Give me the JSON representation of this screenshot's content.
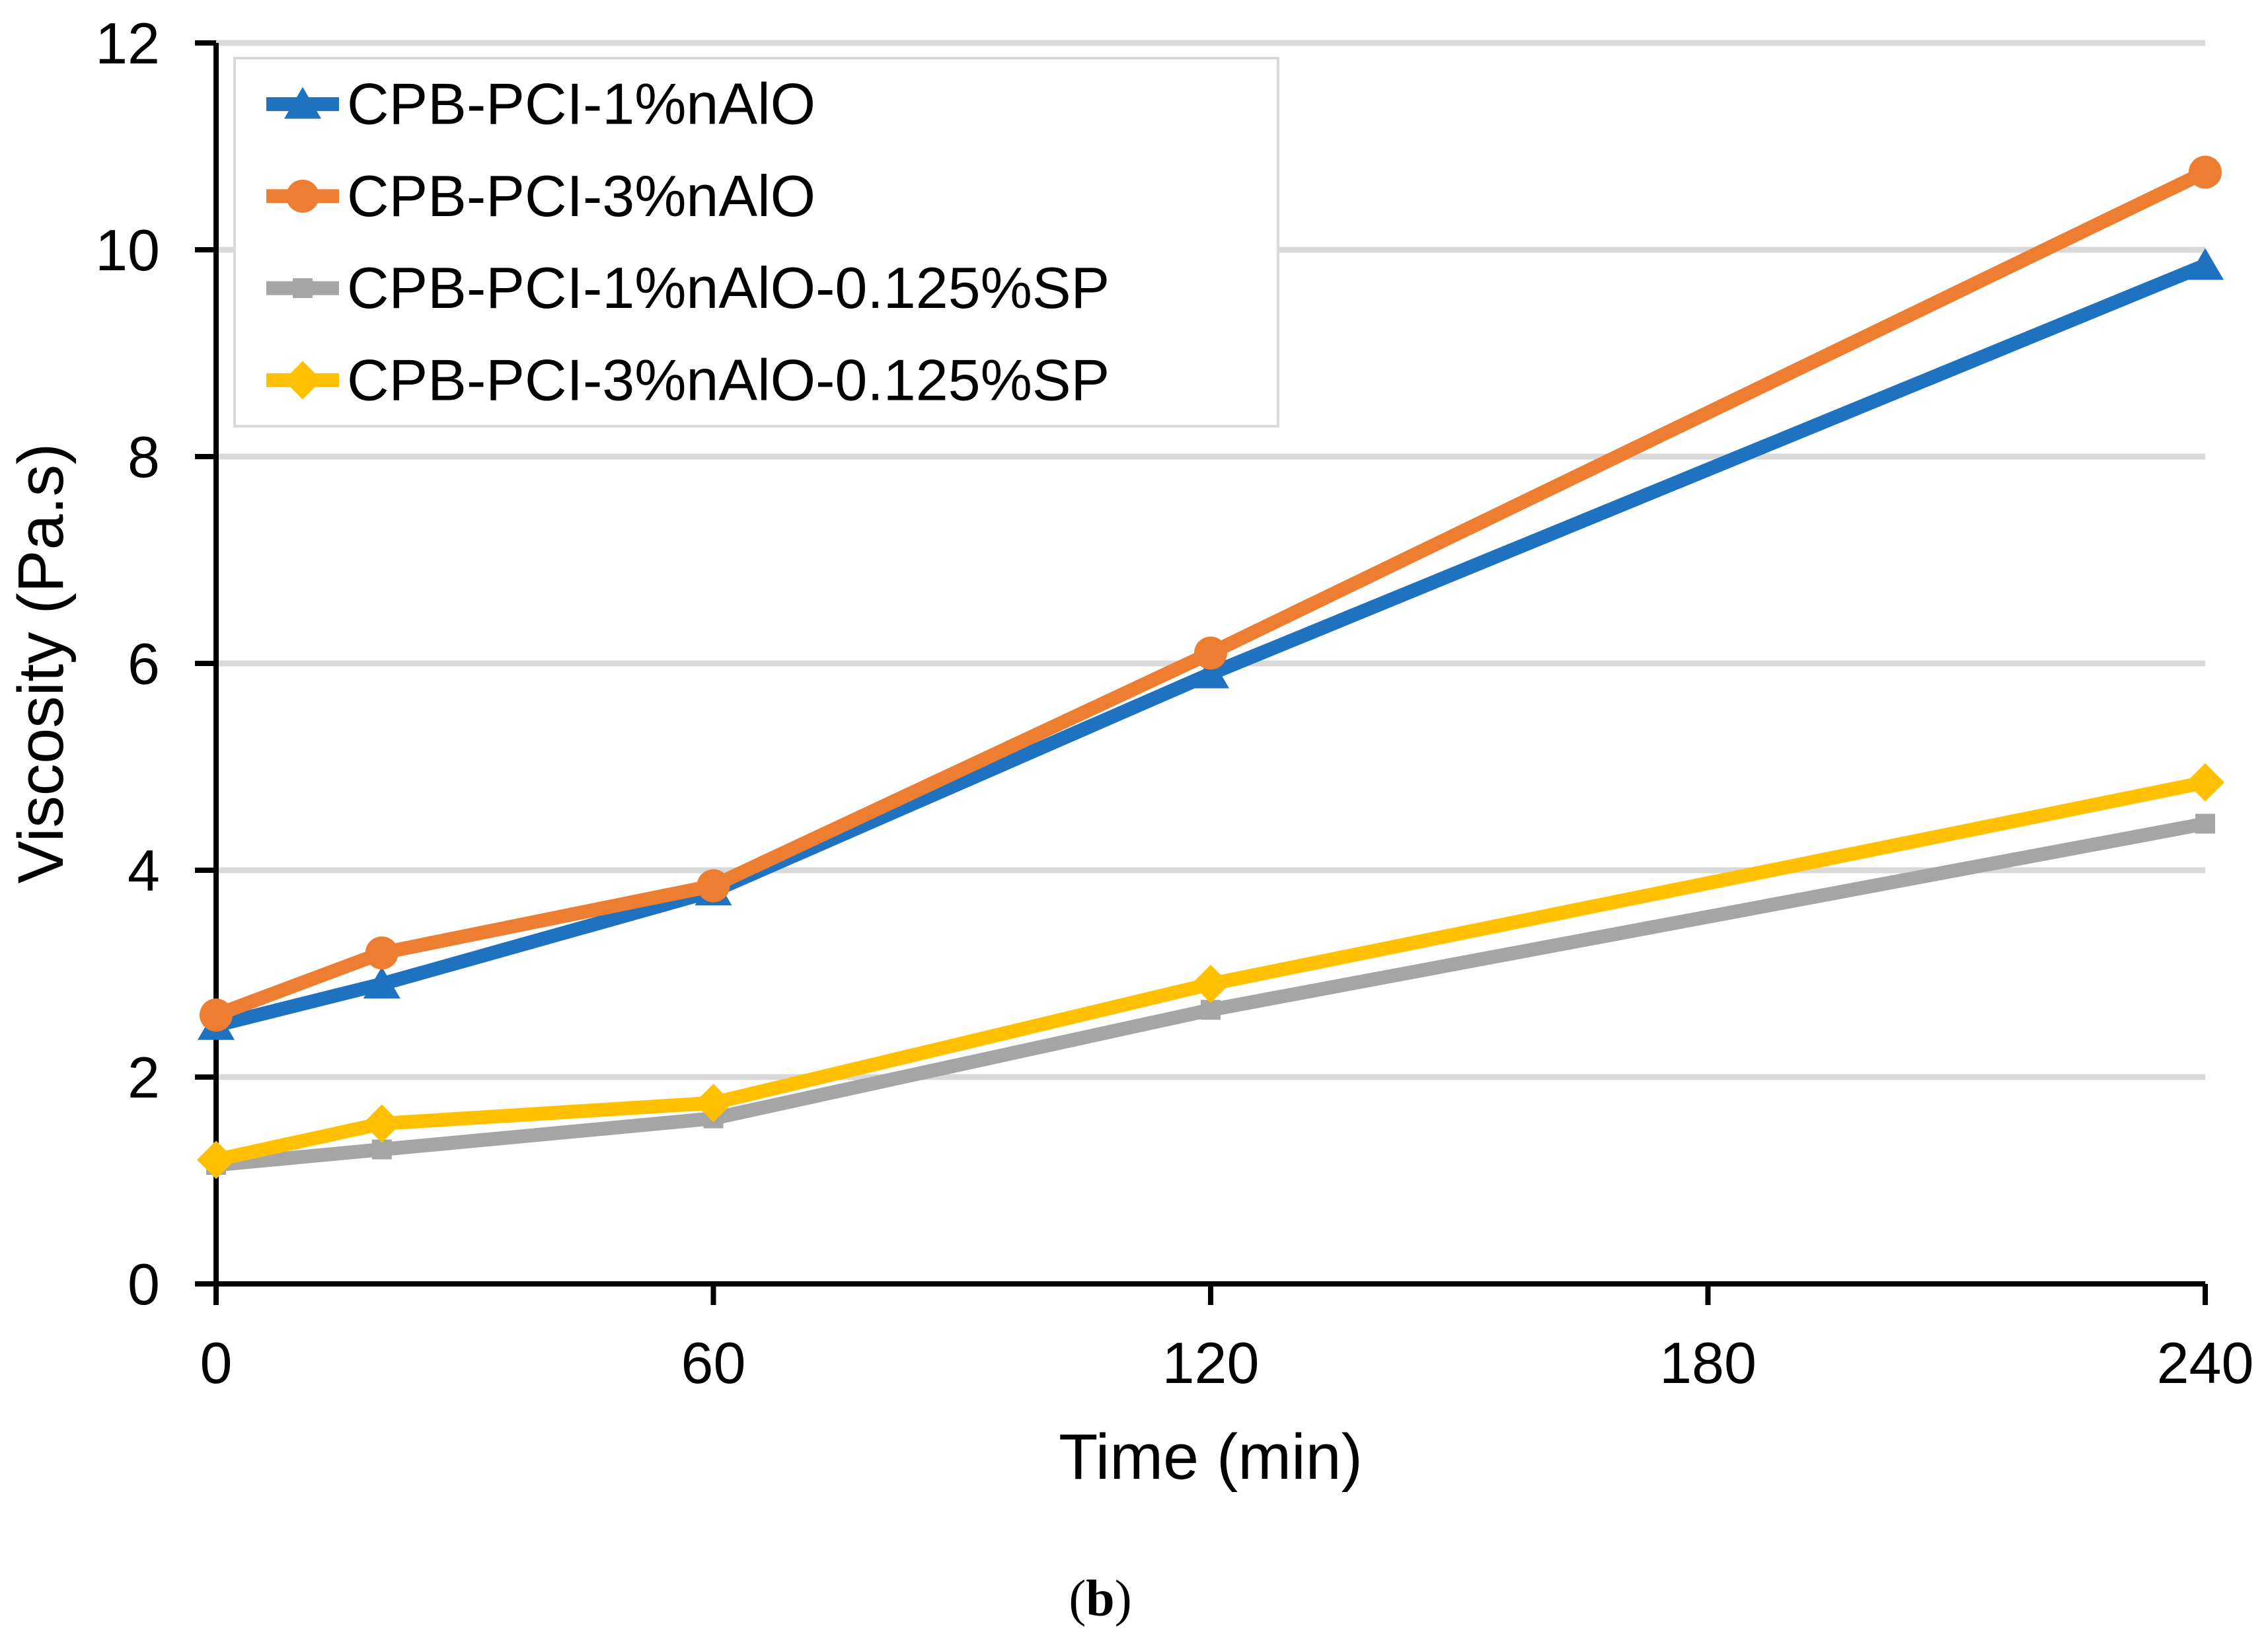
{
  "figure": {
    "caption_open": "(",
    "caption_letter": "b",
    "caption_close": ")"
  },
  "chart_data": {
    "type": "line",
    "title": "",
    "xlabel": "Time (min)",
    "ylabel": "Viscosity (Pa.s)",
    "x": [
      0,
      20,
      60,
      120,
      240
    ],
    "x_ticks": [
      0,
      60,
      120,
      180,
      240
    ],
    "xlim": [
      0,
      240
    ],
    "ylim": [
      0,
      12
    ],
    "y_tick_step": 2,
    "grid": "horizontal-only",
    "legend_position": "top-left-inside",
    "series": [
      {
        "name": "CPB-PCI-1%nAlO",
        "color": "#1F72C0",
        "marker": "triangle",
        "values": [
          2.5,
          2.9,
          3.8,
          5.9,
          9.85
        ]
      },
      {
        "name": "CPB-PCI-3%nAlO",
        "color": "#ED7D31",
        "marker": "circle",
        "values": [
          2.6,
          3.2,
          3.85,
          6.1,
          10.75
        ]
      },
      {
        "name": "CPB-PCI-1%nAlO-0.125%SP",
        "color": "#A5A5A5",
        "marker": "square",
        "values": [
          1.15,
          1.3,
          1.6,
          2.65,
          4.45
        ]
      },
      {
        "name": "CPB-PCI-3%nAlO-0.125%SP",
        "color": "#FFC000",
        "marker": "diamond",
        "values": [
          1.2,
          1.55,
          1.75,
          2.9,
          4.85
        ]
      }
    ],
    "colors": {
      "grid": "#D9D9D9",
      "axis": "#000000",
      "text": "#000000",
      "legend_border": "#D9D9D9",
      "legend_fill": "#FFFFFF",
      "background": "#FFFFFF"
    }
  }
}
